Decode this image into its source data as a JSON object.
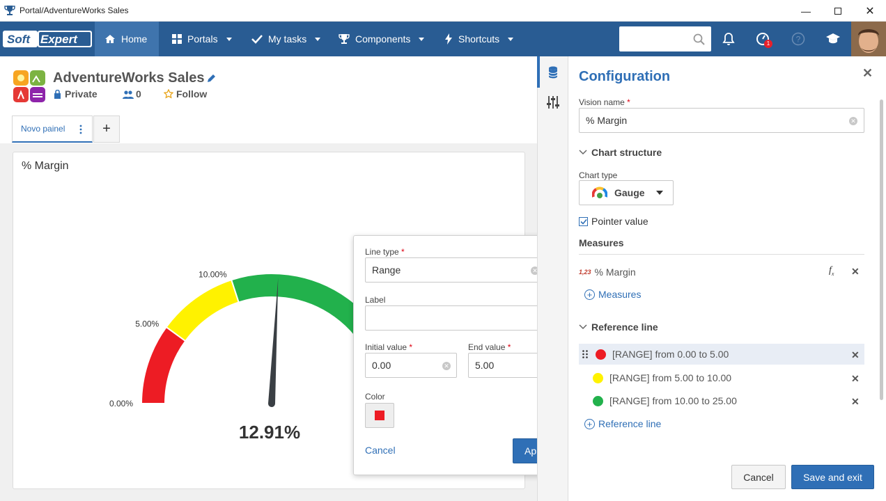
{
  "window": {
    "title": "Portal/AdventureWorks Sales"
  },
  "nav": {
    "logo": "SoftExpert",
    "items": [
      {
        "label": "Home"
      },
      {
        "label": "Portals"
      },
      {
        "label": "My tasks"
      },
      {
        "label": "Components"
      },
      {
        "label": "Shortcuts"
      }
    ],
    "search_placeholder": "",
    "notification_badge": "1",
    "accent": "#295c93"
  },
  "portal": {
    "title": "AdventureWorks Sales",
    "privacy": "Private",
    "members_count": "0",
    "follow": "Follow"
  },
  "tabs": [
    {
      "label": "Novo painel"
    }
  ],
  "chart": {
    "title": "% Margin",
    "value_label": "12.91%"
  },
  "chart_data": {
    "type": "gauge",
    "value": 12.91,
    "min": 0,
    "max": 25,
    "bands": [
      {
        "from": 0,
        "to": 5,
        "color": "#ed1c24"
      },
      {
        "from": 5,
        "to": 10,
        "color": "#fff200"
      },
      {
        "from": 10,
        "to": 25,
        "color": "#22b14c"
      }
    ],
    "tick_labels": [
      "0.00%",
      "5.00%",
      "10.00%"
    ]
  },
  "popup": {
    "line_type_label": "Line type",
    "line_type_value": "Range",
    "label_label": "Label",
    "label_value": "",
    "initial_label": "Initial value",
    "initial_value": "0.00",
    "end_label": "End value",
    "end_value": "5.00",
    "color_label": "Color",
    "color_value": "#ed1c24",
    "cancel": "Cancel",
    "apply": "Apply"
  },
  "config": {
    "title": "Configuration",
    "vision_name_label": "Vision name",
    "vision_name_value": "% Margin",
    "chart_structure": "Chart structure",
    "chart_type_label": "Chart type",
    "chart_type_value": "Gauge",
    "pointer_value_label": "Pointer value",
    "measures_header": "Measures",
    "measure_icon": "1,23",
    "measure_name": "% Margin",
    "add_measures": "Measures",
    "reference_line_header": "Reference line",
    "reference_lines": [
      {
        "text": "[RANGE] from 0.00 to 5.00",
        "color": "#ed1c24"
      },
      {
        "text": "[RANGE] from 5.00 to 10.00",
        "color": "#fff200"
      },
      {
        "text": "[RANGE] from 10.00 to 25.00",
        "color": "#22b14c"
      }
    ],
    "add_reference_line": "Reference line",
    "cancel": "Cancel",
    "save": "Save and exit"
  }
}
